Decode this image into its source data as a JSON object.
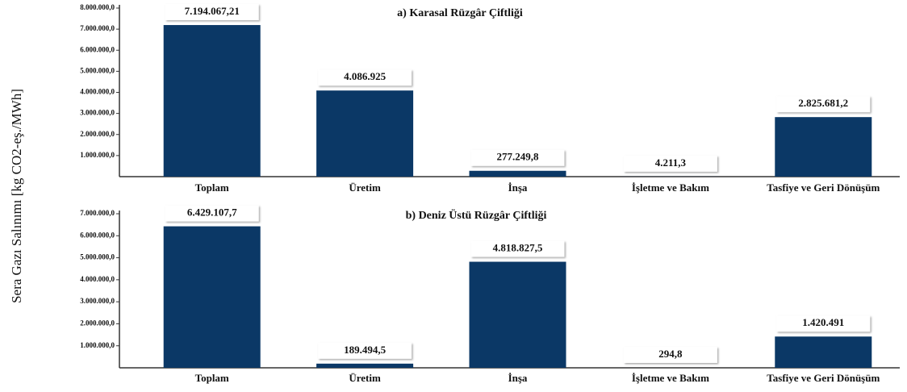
{
  "chart_data": [
    {
      "type": "bar",
      "title": "a) Karasal Rüzgâr Çiftliği",
      "ylabel": "Sera Gazı Salınımı [kg CO2-eş./MWh]",
      "categories": [
        "Toplam",
        "Üretim",
        "İnşa",
        "İşletme ve Bakım",
        "Tasfiye ve Geri Dönüşüm"
      ],
      "values": [
        7194067.21,
        4086925,
        277249.8,
        4211.3,
        2825681.2
      ],
      "value_labels": [
        "7.194.067,21",
        "4.086.925",
        "277.249,8",
        "4.211,3",
        "2.825.681,2"
      ],
      "color": "#0b3866",
      "ylim": [
        0,
        8000000
      ],
      "yticks": [
        {
          "value": 1000000,
          "label": "1.000.000,0"
        },
        {
          "value": 2000000,
          "label": "2.000.000,0"
        },
        {
          "value": 3000000,
          "label": "3.000.000,0"
        },
        {
          "value": 4000000,
          "label": "4.000.000,0"
        },
        {
          "value": 5000000,
          "label": "5.000.000,0"
        },
        {
          "value": 6000000,
          "label": "6.000.000,0"
        },
        {
          "value": 7000000,
          "label": "7.000.000,0"
        },
        {
          "value": 8000000,
          "label": "8.000.000,0"
        }
      ]
    },
    {
      "type": "bar",
      "title": "b) Deniz Üstü Rüzgâr Çiftliği",
      "categories": [
        "Toplam",
        "Üretim",
        "İnşa",
        "İşletme ve Bakım",
        "Tasfiye ve Geri Dönüşüm"
      ],
      "values": [
        6429107.7,
        189494.5,
        4818827.5,
        294.8,
        1420491
      ],
      "value_labels": [
        "6.429.107,7",
        "189.494,5",
        "4.818.827,5",
        "294,8",
        "1.420.491"
      ],
      "color": "#0b3866",
      "ylim": [
        0,
        7000000
      ],
      "yticks": [
        {
          "value": 1000000,
          "label": "1.000.000,0"
        },
        {
          "value": 2000000,
          "label": "2.000.000,0"
        },
        {
          "value": 3000000,
          "label": "3.000.000,0"
        },
        {
          "value": 4000000,
          "label": "4.000.000,0"
        },
        {
          "value": 5000000,
          "label": "5.000.000,0"
        },
        {
          "value": 6000000,
          "label": "6.000.000,0"
        },
        {
          "value": 7000000,
          "label": "7.000.000,0"
        }
      ]
    }
  ]
}
